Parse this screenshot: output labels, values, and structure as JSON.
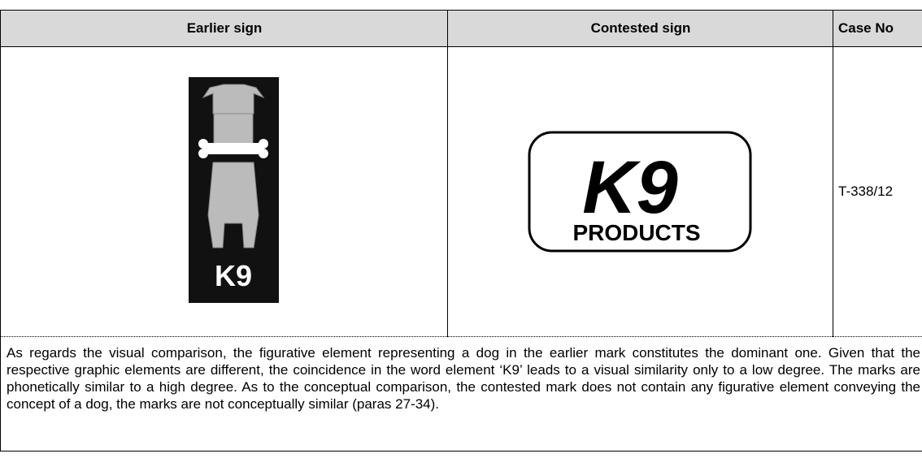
{
  "table": {
    "headers": [
      "Earlier sign",
      "Contested sign",
      "Case No"
    ],
    "earlier_sign": {
      "logo_text": "K9"
    },
    "contested_sign": {
      "logo_text": "K9",
      "logo_subtext": "PRODUCTS"
    },
    "case_no": "T-338/12",
    "summary": "As regards the visual comparison, the figurative element representing a dog in the earlier mark constitutes the dominant one. Given that the respective graphic elements are different, the coincidence in the word element ‘K9’ leads to a visual similarity only to a low degree. The marks are phonetically similar to a high degree. As to the conceptual comparison, the contested mark does not contain any figurative element conveying the concept of a dog, the marks are not conceptually similar (paras 27-34)."
  }
}
